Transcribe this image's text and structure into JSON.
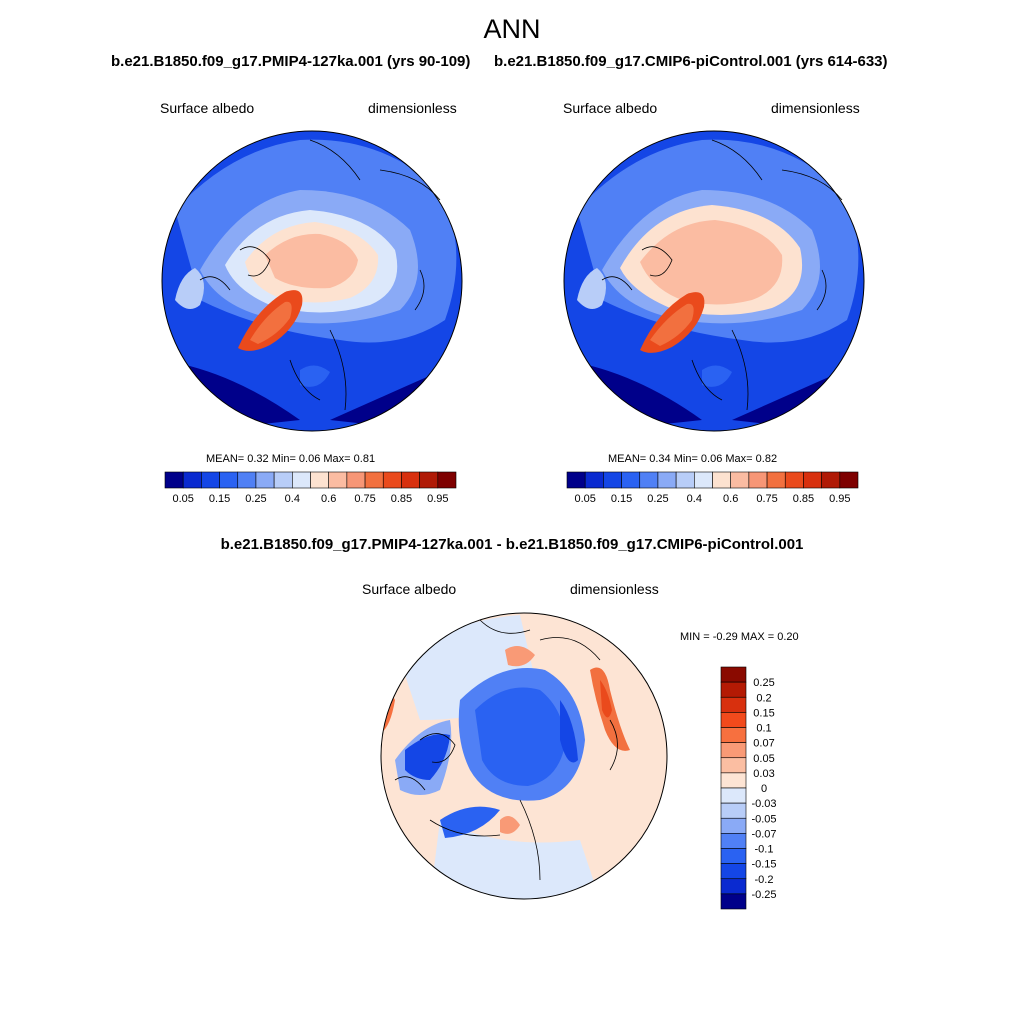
{
  "figure": {
    "title": "ANN"
  },
  "panels": [
    {
      "id": "left",
      "case_title": "b.e21.B1850.f09_g17.PMIP4-127ka.001 (yrs 90-109)",
      "variable": "Surface albedo",
      "units": "dimensionless",
      "stats_text": "MEAN=   0.32  Min=   0.06  Max=   0.81",
      "mean": 0.32,
      "min": 0.06,
      "max": 0.81
    },
    {
      "id": "right",
      "case_title": "b.e21.B1850.f09_g17.CMIP6-piControl.001 (yrs 614-633)",
      "variable": "Surface albedo",
      "units": "dimensionless",
      "stats_text": "MEAN=   0.34  Min=   0.06  Max=   0.82",
      "mean": 0.34,
      "min": 0.06,
      "max": 0.82
    },
    {
      "id": "diff",
      "case_title": "b.e21.B1850.f09_g17.PMIP4-127ka.001 - b.e21.B1850.f09_g17.CMIP6-piControl.001",
      "variable": "Surface albedo",
      "units": "dimensionless",
      "stats_text": "MIN =  -0.29 MAX =   0.20",
      "min": -0.29,
      "max": 0.2
    }
  ],
  "colorbar_abs": {
    "levels": [
      "0.05",
      "0.15",
      "0.25",
      "0.4",
      "0.6",
      "0.75",
      "0.85",
      "0.95"
    ],
    "colors": [
      "#00008a",
      "#0a2ad0",
      "#1446e6",
      "#2a62f2",
      "#5080f5",
      "#8aaaf6",
      "#b8cdf8",
      "#dce8fb",
      "#fde2d0",
      "#fbbca2",
      "#f79676",
      "#f2703f",
      "#ea4a1c",
      "#d8300e",
      "#b01a06",
      "#7e0000"
    ]
  },
  "colorbar_diff": {
    "levels": [
      "0.25",
      "0.2",
      "0.15",
      "0.1",
      "0.07",
      "0.05",
      "0.03",
      "0",
      "-0.03",
      "-0.05",
      "-0.07",
      "-0.1",
      "-0.15",
      "-0.2",
      "-0.25"
    ],
    "colors": [
      "#8a0a00",
      "#b41a04",
      "#d8300e",
      "#f24a1c",
      "#f7703f",
      "#f99a76",
      "#fbbea2",
      "#fde4d4",
      "#dce8fb",
      "#b8cdf8",
      "#8aaaf6",
      "#5080f5",
      "#2a62f2",
      "#1446e6",
      "#0a2ad0",
      "#00008a"
    ]
  }
}
